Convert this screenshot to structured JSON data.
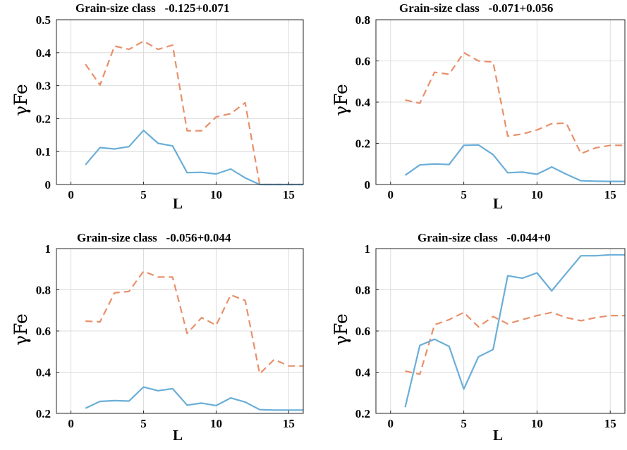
{
  "chart_data": [
    {
      "type": "line",
      "title": "Grain-size class   -0.125+0.071",
      "xlabel": "L",
      "ylabel": "γFe",
      "xlim": [
        -1,
        16
      ],
      "ylim": [
        0,
        0.5
      ],
      "xticks": [
        "0",
        "5",
        "10",
        "15"
      ],
      "yticks": [
        "0",
        "0.1",
        "0.2",
        "0.3",
        "0.4",
        "0.5"
      ],
      "grid": true,
      "series": [
        {
          "style": "dashed",
          "color": "#E8906A",
          "x": [
            1,
            2,
            3,
            4,
            5,
            6,
            7,
            8,
            9,
            10,
            11,
            12,
            13,
            14,
            15,
            16
          ],
          "values": [
            0.365,
            0.302,
            0.42,
            0.41,
            0.435,
            0.41,
            0.423,
            0.163,
            0.163,
            0.205,
            0.215,
            0.248,
            0.0,
            0.0,
            0.0,
            0.0
          ]
        },
        {
          "style": "solid",
          "color": "#6AAED8",
          "x": [
            1,
            2,
            3,
            4,
            5,
            6,
            7,
            8,
            9,
            10,
            11,
            12,
            13,
            14,
            15,
            16
          ],
          "values": [
            0.06,
            0.112,
            0.108,
            0.115,
            0.164,
            0.125,
            0.117,
            0.036,
            0.037,
            0.032,
            0.047,
            0.02,
            0.0,
            0.0,
            0.0,
            0.0
          ]
        }
      ]
    },
    {
      "type": "line",
      "title": "Grain-size class   -0.071+0.056",
      "xlabel": "L",
      "ylabel": "γFe",
      "xlim": [
        -1,
        16
      ],
      "ylim": [
        0,
        0.8
      ],
      "xticks": [
        "0",
        "5",
        "10",
        "15"
      ],
      "yticks": [
        "0",
        "0.2",
        "0.4",
        "0.6",
        "0.8"
      ],
      "grid": true,
      "series": [
        {
          "style": "dashed",
          "color": "#E8906A",
          "x": [
            1,
            2,
            3,
            4,
            5,
            6,
            7,
            8,
            9,
            10,
            11,
            12,
            13,
            14,
            15,
            16
          ],
          "values": [
            0.41,
            0.395,
            0.545,
            0.535,
            0.64,
            0.6,
            0.595,
            0.235,
            0.245,
            0.265,
            0.295,
            0.298,
            0.15,
            0.178,
            0.19,
            0.19
          ]
        },
        {
          "style": "solid",
          "color": "#6AAED8",
          "x": [
            1,
            2,
            3,
            4,
            5,
            6,
            7,
            8,
            9,
            10,
            11,
            12,
            13,
            14,
            15,
            16
          ],
          "values": [
            0.045,
            0.095,
            0.1,
            0.097,
            0.19,
            0.192,
            0.145,
            0.057,
            0.06,
            0.05,
            0.085,
            0.05,
            0.018,
            0.016,
            0.015,
            0.015
          ]
        }
      ]
    },
    {
      "type": "line",
      "title": "Grain-size class   -0.056+0.044",
      "xlabel": "L",
      "ylabel": "γFe",
      "xlim": [
        -1,
        16
      ],
      "ylim": [
        0.2,
        1.0
      ],
      "xticks": [
        "0",
        "5",
        "10",
        "15"
      ],
      "yticks": [
        "0.2",
        "0.4",
        "0.6",
        "0.8",
        "1"
      ],
      "grid": true,
      "series": [
        {
          "style": "dashed",
          "color": "#E8906A",
          "x": [
            1,
            2,
            3,
            4,
            5,
            6,
            7,
            8,
            9,
            10,
            11,
            12,
            13,
            14,
            15,
            16
          ],
          "values": [
            0.648,
            0.644,
            0.785,
            0.792,
            0.89,
            0.862,
            0.862,
            0.588,
            0.665,
            0.628,
            0.775,
            0.748,
            0.392,
            0.462,
            0.43,
            0.43
          ]
        },
        {
          "style": "solid",
          "color": "#6AAED8",
          "x": [
            1,
            2,
            3,
            4,
            5,
            6,
            7,
            8,
            9,
            10,
            11,
            12,
            13,
            14,
            15,
            16
          ],
          "values": [
            0.225,
            0.258,
            0.262,
            0.26,
            0.328,
            0.31,
            0.32,
            0.24,
            0.25,
            0.238,
            0.275,
            0.255,
            0.218,
            0.216,
            0.216,
            0.216
          ]
        }
      ]
    },
    {
      "type": "line",
      "title": "Grain-size class   -0.044+0",
      "xlabel": "L",
      "ylabel": "γFe",
      "xlim": [
        -1,
        16
      ],
      "ylim": [
        0.2,
        1.0
      ],
      "xticks": [
        "0",
        "5",
        "10",
        "15"
      ],
      "yticks": [
        "0.2",
        "0.4",
        "0.6",
        "0.8",
        "1"
      ],
      "grid": true,
      "series": [
        {
          "style": "dashed",
          "color": "#E8906A",
          "x": [
            1,
            2,
            3,
            4,
            5,
            6,
            7,
            8,
            9,
            10,
            11,
            12,
            13,
            14,
            15,
            16
          ],
          "values": [
            0.405,
            0.39,
            0.63,
            0.655,
            0.69,
            0.62,
            0.67,
            0.635,
            0.655,
            0.675,
            0.69,
            0.665,
            0.65,
            0.665,
            0.675,
            0.675
          ]
        },
        {
          "style": "solid",
          "color": "#6AAED8",
          "x": [
            1,
            2,
            3,
            4,
            5,
            6,
            7,
            8,
            9,
            10,
            11,
            12,
            13,
            14,
            15,
            16
          ],
          "values": [
            0.23,
            0.53,
            0.56,
            0.525,
            0.318,
            0.475,
            0.51,
            0.868,
            0.856,
            0.882,
            0.795,
            0.88,
            0.965,
            0.965,
            0.97,
            0.97
          ]
        }
      ]
    }
  ]
}
